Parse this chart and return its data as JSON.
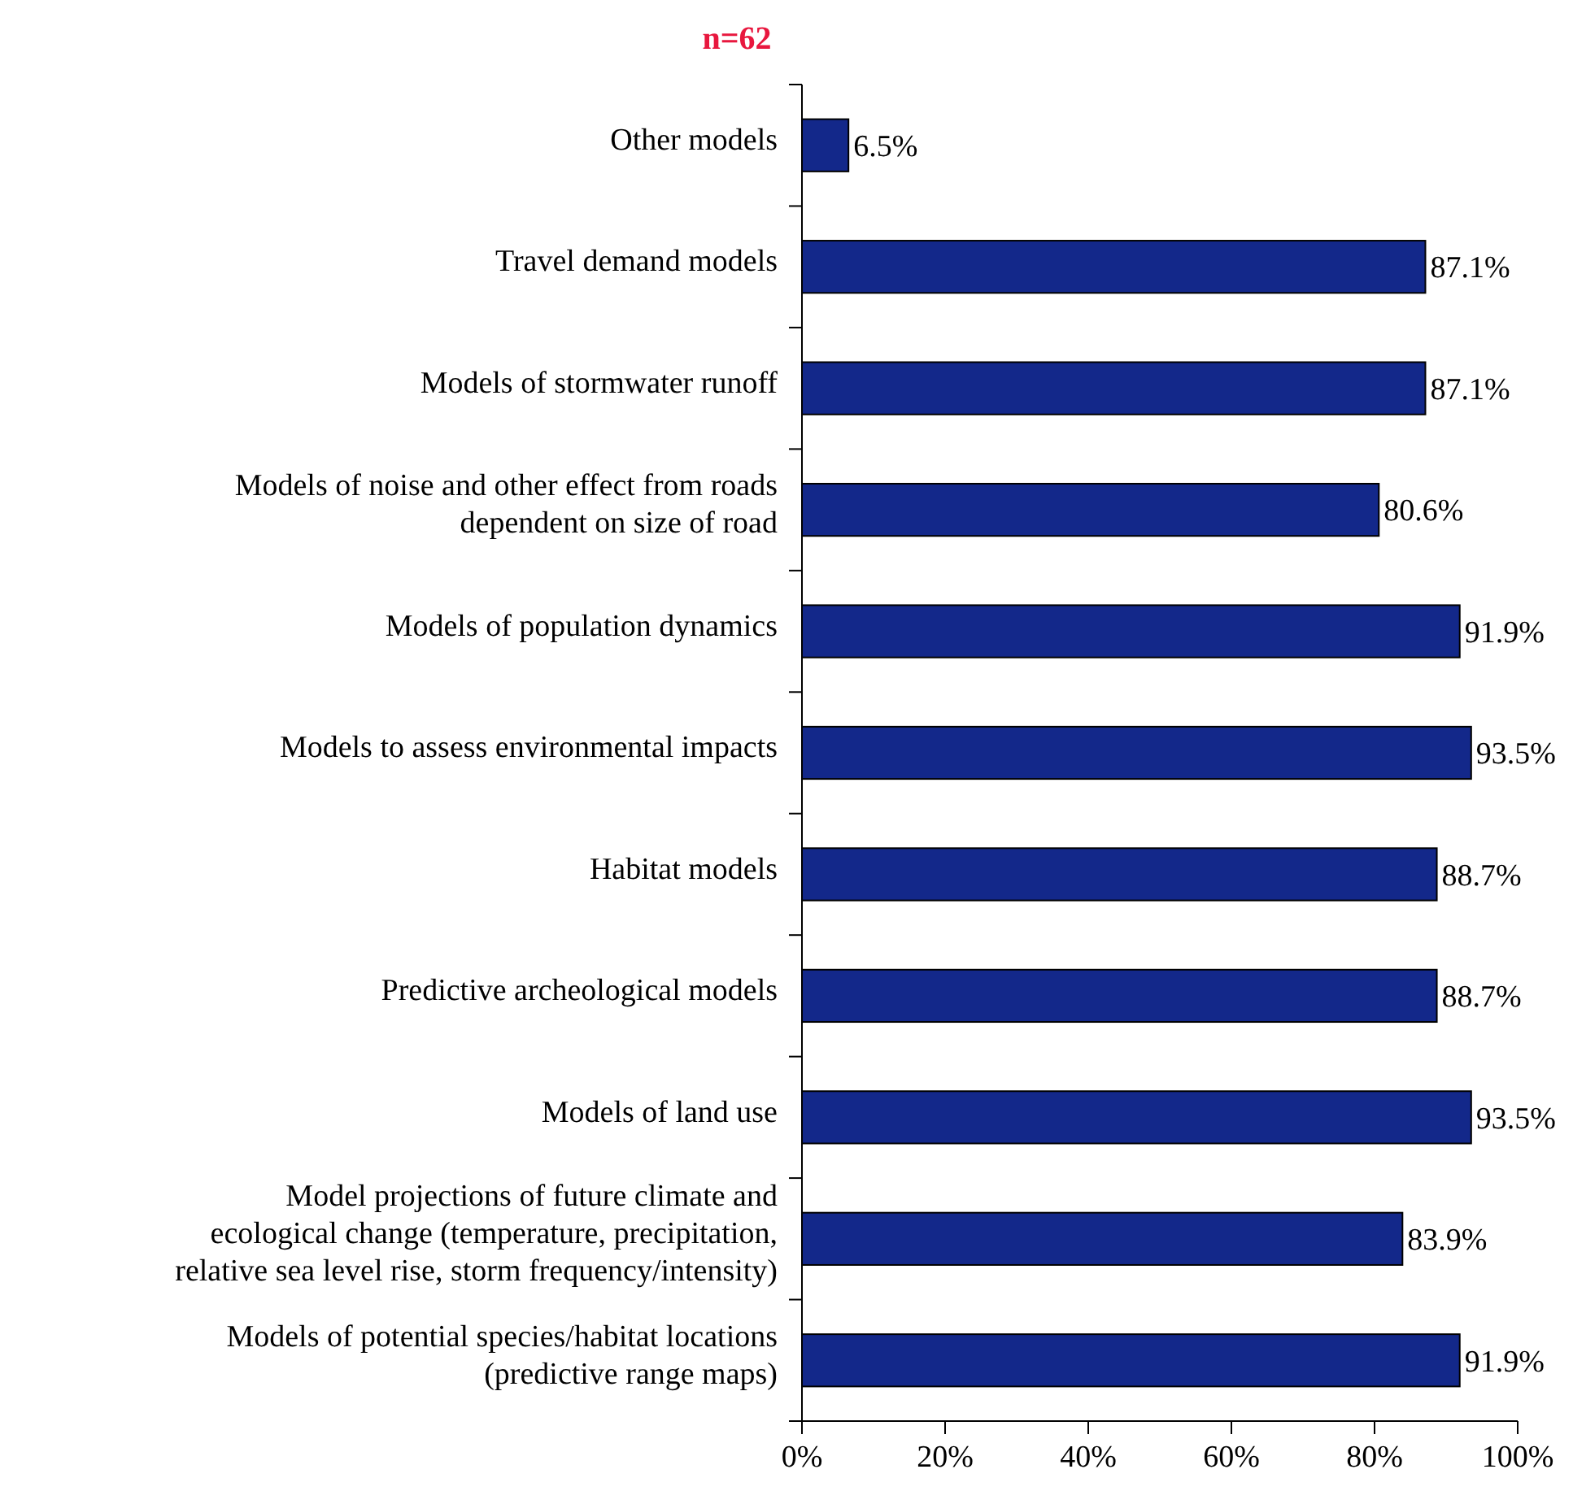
{
  "chart_data": {
    "type": "bar",
    "orientation": "horizontal",
    "title": "n=62",
    "categories": [
      "Other models",
      "Travel demand models",
      "Models of stormwater runoff",
      "Models of noise and other effect from roads\ndependent on size of road",
      "Models of population dynamics",
      "Models to assess environmental impacts",
      "Habitat models",
      "Predictive archeological models",
      "Models of land use",
      "Model projections of future climate and\necological change (temperature, precipitation,\nrelative sea level rise, storm frequency/intensity)",
      "Models of potential species/habitat locations\n(predictive range maps)"
    ],
    "values": [
      6.5,
      87.1,
      87.1,
      80.6,
      91.9,
      93.5,
      88.7,
      88.7,
      93.5,
      83.9,
      91.9
    ],
    "value_labels": [
      "6.5%",
      "87.1%",
      "87.1%",
      "80.6%",
      "91.9%",
      "93.5%",
      "88.7%",
      "88.7%",
      "93.5%",
      "83.9%",
      "91.9%"
    ],
    "color": "#13288a",
    "xlim": [
      0,
      100
    ],
    "xticks": [
      {
        "value": 0,
        "label": "0%"
      },
      {
        "value": 20,
        "label": "20%"
      },
      {
        "value": 40,
        "label": "40%"
      },
      {
        "value": 60,
        "label": "60%"
      },
      {
        "value": 80,
        "label": "80%"
      },
      {
        "value": 100,
        "label": "100%"
      }
    ],
    "grid": false
  }
}
